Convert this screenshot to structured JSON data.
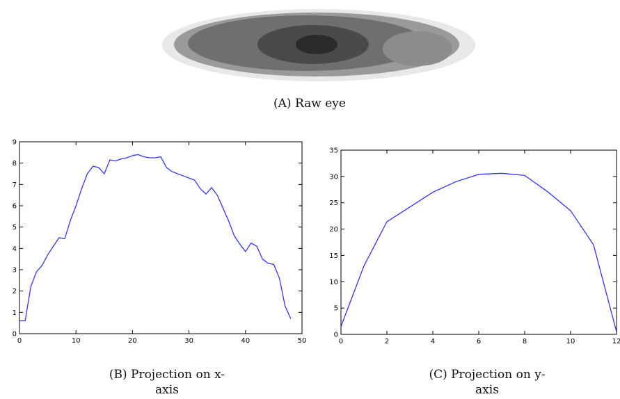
{
  "figure_a": {
    "caption": "(A) Raw eye"
  },
  "chart_data": [
    {
      "type": "line",
      "caption": "(B) Projection on x-axis",
      "x": [
        0,
        1,
        2,
        3,
        4,
        5,
        6,
        7,
        8,
        9,
        10,
        11,
        12,
        13,
        14,
        15,
        16,
        17,
        18,
        19,
        20,
        21,
        22,
        23,
        24,
        25,
        26,
        27,
        28,
        29,
        30,
        31,
        32,
        33,
        34,
        35,
        36,
        37,
        38,
        39,
        40,
        41,
        42,
        43,
        44,
        45,
        46,
        47,
        48
      ],
      "series": [
        {
          "color": "#3333ff",
          "values": [
            0.6,
            0.6,
            2.2,
            2.9,
            3.2,
            3.7,
            4.1,
            4.5,
            4.45,
            5.3,
            6.0,
            6.8,
            7.5,
            7.85,
            7.8,
            7.5,
            8.15,
            8.1,
            8.2,
            8.25,
            8.35,
            8.4,
            8.3,
            8.25,
            8.25,
            8.3,
            7.8,
            7.6,
            7.5,
            7.4,
            7.3,
            7.2,
            6.8,
            6.55,
            6.85,
            6.5,
            5.9,
            5.3,
            4.6,
            4.2,
            3.85,
            4.25,
            4.1,
            3.5,
            3.3,
            3.25,
            2.6,
            1.3,
            0.7
          ]
        }
      ],
      "xlim": [
        0,
        50
      ],
      "xticks": [
        0,
        10,
        20,
        30,
        40,
        50
      ],
      "ylim": [
        0,
        9
      ],
      "yticks": [
        0,
        1,
        2,
        3,
        4,
        5,
        6,
        7,
        8,
        9
      ]
    },
    {
      "type": "line",
      "caption": "(C) Projection on y-axis",
      "x": [
        0,
        1,
        2,
        3,
        4,
        5,
        6,
        7,
        8,
        9,
        10,
        11,
        12
      ],
      "series": [
        {
          "color": "#3333ff",
          "values": [
            1.5,
            13,
            21.4,
            24.2,
            27,
            29,
            30.4,
            30.6,
            30.2,
            27.1,
            23.5,
            17,
            0.5
          ]
        }
      ],
      "xlim": [
        0,
        12
      ],
      "xticks": [
        0,
        2,
        4,
        6,
        8,
        10,
        12
      ],
      "ylim": [
        0,
        35
      ],
      "yticks": [
        0,
        5,
        10,
        15,
        20,
        25,
        30,
        35
      ]
    }
  ]
}
